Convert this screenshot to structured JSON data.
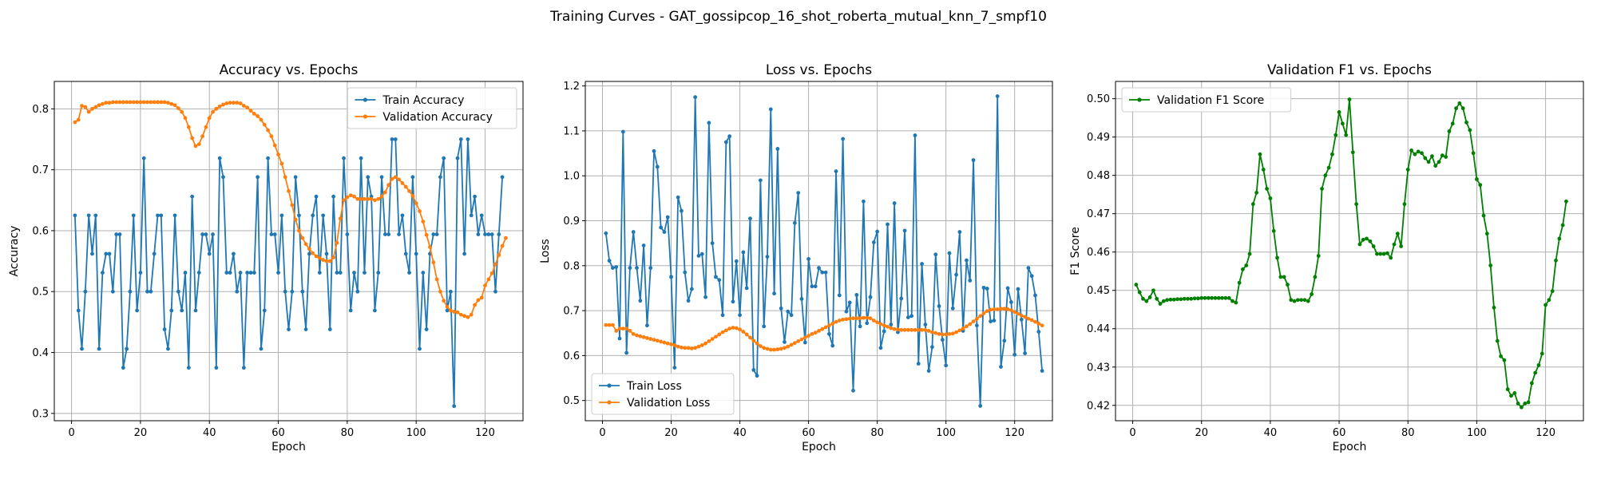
{
  "figure": {
    "suptitle": "Training Curves - GAT_gossipcop_16_shot_roberta_mutual_knn_7_smpf10"
  },
  "colors": {
    "blue": "#1f77b4",
    "orange": "#ff7f0e",
    "green": "#008000"
  },
  "chart_data": [
    {
      "type": "line",
      "title": "Accuracy vs. Epochs",
      "xlabel": "Epoch",
      "ylabel": "Accuracy",
      "xlim": [
        -5,
        131
      ],
      "ylim": [
        0.288,
        0.845
      ],
      "xticks": [
        0,
        20,
        40,
        60,
        80,
        100,
        120
      ],
      "yticks": [
        0.3,
        0.4,
        0.5,
        0.6,
        0.7,
        0.8
      ],
      "legend_position": "top-right",
      "x_start": 1,
      "series": [
        {
          "name": "Train Accuracy",
          "color": "#1f77b4",
          "values": [
            0.625,
            0.469,
            0.406,
            0.5,
            0.625,
            0.562,
            0.625,
            0.406,
            0.531,
            0.562,
            0.562,
            0.5,
            0.594,
            0.594,
            0.375,
            0.406,
            0.5,
            0.625,
            0.469,
            0.531,
            0.719,
            0.5,
            0.5,
            0.562,
            0.625,
            0.625,
            0.438,
            0.406,
            0.469,
            0.625,
            0.5,
            0.469,
            0.531,
            0.375,
            0.656,
            0.469,
            0.531,
            0.594,
            0.594,
            0.562,
            0.594,
            0.375,
            0.719,
            0.688,
            0.531,
            0.531,
            0.562,
            0.5,
            0.531,
            0.375,
            0.531,
            0.531,
            0.531,
            0.688,
            0.406,
            0.469,
            0.719,
            0.594,
            0.594,
            0.531,
            0.625,
            0.5,
            0.438,
            0.5,
            0.688,
            0.625,
            0.5,
            0.438,
            0.562,
            0.625,
            0.656,
            0.531,
            0.625,
            0.562,
            0.438,
            0.656,
            0.531,
            0.531,
            0.719,
            0.594,
            0.469,
            0.531,
            0.5,
            0.719,
            0.531,
            0.688,
            0.656,
            0.469,
            0.531,
            0.688,
            0.594,
            0.594,
            0.75,
            0.75,
            0.594,
            0.625,
            0.562,
            0.531,
            0.688,
            0.562,
            0.406,
            0.531,
            0.438,
            0.562,
            0.594,
            0.594,
            0.688,
            0.719,
            0.469,
            0.5,
            0.312,
            0.719,
            0.75,
            0.562,
            0.75,
            0.625,
            0.656,
            0.594,
            0.625,
            0.594,
            0.594,
            0.594,
            0.5,
            0.594,
            0.688
          ]
        },
        {
          "name": "Validation Accuracy",
          "color": "#ff7f0e",
          "values": [
            0.778,
            0.782,
            0.805,
            0.803,
            0.795,
            0.8,
            0.803,
            0.806,
            0.808,
            0.81,
            0.81,
            0.811,
            0.811,
            0.811,
            0.811,
            0.811,
            0.811,
            0.811,
            0.811,
            0.811,
            0.811,
            0.811,
            0.811,
            0.811,
            0.811,
            0.811,
            0.811,
            0.81,
            0.808,
            0.806,
            0.801,
            0.795,
            0.785,
            0.77,
            0.752,
            0.739,
            0.742,
            0.755,
            0.77,
            0.785,
            0.795,
            0.8,
            0.804,
            0.807,
            0.809,
            0.81,
            0.81,
            0.81,
            0.809,
            0.805,
            0.802,
            0.797,
            0.792,
            0.788,
            0.782,
            0.774,
            0.765,
            0.755,
            0.74,
            0.725,
            0.71,
            0.688,
            0.665,
            0.642,
            0.618,
            0.6,
            0.588,
            0.578,
            0.57,
            0.563,
            0.558,
            0.555,
            0.552,
            0.55,
            0.55,
            0.556,
            0.58,
            0.62,
            0.65,
            0.655,
            0.658,
            0.656,
            0.652,
            0.652,
            0.652,
            0.652,
            0.652,
            0.65,
            0.652,
            0.656,
            0.663,
            0.675,
            0.685,
            0.688,
            0.684,
            0.678,
            0.672,
            0.665,
            0.657,
            0.645,
            0.632,
            0.615,
            0.593,
            0.573,
            0.548,
            0.52,
            0.5,
            0.485,
            0.475,
            0.469,
            0.467,
            0.466,
            0.462,
            0.46,
            0.458,
            0.462,
            0.478,
            0.486,
            0.49,
            0.51,
            0.52,
            0.53,
            0.545,
            0.56,
            0.575,
            0.588
          ]
        }
      ]
    },
    {
      "type": "line",
      "title": "Loss vs. Epochs",
      "xlabel": "Epoch",
      "ylabel": "Loss",
      "xlim": [
        -5,
        131
      ],
      "ylim": [
        0.455,
        1.21
      ],
      "xticks": [
        0,
        20,
        40,
        60,
        80,
        100,
        120
      ],
      "yticks": [
        0.5,
        0.6,
        0.7,
        0.8,
        0.9,
        1.0,
        1.1,
        1.2
      ],
      "legend_position": "bottom-left",
      "x_start": 1,
      "series": [
        {
          "name": "Train Loss",
          "color": "#1f77b4",
          "values": [
            0.872,
            0.811,
            0.795,
            0.797,
            0.638,
            1.098,
            0.606,
            0.795,
            0.875,
            0.795,
            0.722,
            0.845,
            0.667,
            0.795,
            1.055,
            1.02,
            0.885,
            0.875,
            0.908,
            0.775,
            0.573,
            0.952,
            0.922,
            0.785,
            0.722,
            0.748,
            1.175,
            0.822,
            0.826,
            0.73,
            1.118,
            0.85,
            0.775,
            0.768,
            0.69,
            1.075,
            1.088,
            0.72,
            0.81,
            0.69,
            0.83,
            0.75,
            0.905,
            0.568,
            0.555,
            0.99,
            0.665,
            0.82,
            1.148,
            0.738,
            1.06,
            0.705,
            0.63,
            0.698,
            0.69,
            0.895,
            0.962,
            0.726,
            0.629,
            0.815,
            0.754,
            0.754,
            0.795,
            0.785,
            0.785,
            0.648,
            0.622,
            1.01,
            0.734,
            1.082,
            0.698,
            0.718,
            0.522,
            0.735,
            0.665,
            0.943,
            0.672,
            0.73,
            0.852,
            0.876,
            0.617,
            0.654,
            0.892,
            0.669,
            0.939,
            0.652,
            0.727,
            0.878,
            0.685,
            0.688,
            1.09,
            0.582,
            0.804,
            0.669,
            0.566,
            0.619,
            0.825,
            0.71,
            0.635,
            0.578,
            0.828,
            0.705,
            0.78,
            0.875,
            0.655,
            0.812,
            0.767,
            1.035,
            0.667,
            0.488,
            0.751,
            0.749,
            0.676,
            0.678,
            1.177,
            0.575,
            0.633,
            0.75,
            0.719,
            0.602,
            0.748,
            0.68,
            0.605,
            0.795,
            0.777,
            0.734,
            0.653,
            0.566
          ]
        },
        {
          "name": "Validation Loss",
          "color": "#ff7f0e",
          "values": [
            0.668,
            0.668,
            0.668,
            0.655,
            0.66,
            0.66,
            0.66,
            0.655,
            0.648,
            0.645,
            0.643,
            0.641,
            0.639,
            0.637,
            0.635,
            0.633,
            0.631,
            0.629,
            0.627,
            0.625,
            0.623,
            0.62,
            0.618,
            0.617,
            0.617,
            0.616,
            0.617,
            0.62,
            0.623,
            0.627,
            0.632,
            0.637,
            0.642,
            0.647,
            0.652,
            0.656,
            0.66,
            0.662,
            0.661,
            0.658,
            0.653,
            0.647,
            0.64,
            0.633,
            0.627,
            0.621,
            0.617,
            0.615,
            0.613,
            0.613,
            0.614,
            0.615,
            0.617,
            0.62,
            0.624,
            0.628,
            0.632,
            0.636,
            0.64,
            0.644,
            0.648,
            0.651,
            0.655,
            0.659,
            0.663,
            0.667,
            0.671,
            0.675,
            0.678,
            0.68,
            0.681,
            0.682,
            0.683,
            0.683,
            0.683,
            0.684,
            0.684,
            0.683,
            0.678,
            0.674,
            0.67,
            0.667,
            0.664,
            0.661,
            0.659,
            0.658,
            0.657,
            0.657,
            0.657,
            0.657,
            0.657,
            0.657,
            0.657,
            0.657,
            0.655,
            0.652,
            0.65,
            0.648,
            0.647,
            0.647,
            0.648,
            0.649,
            0.652,
            0.656,
            0.66,
            0.665,
            0.67,
            0.676,
            0.682,
            0.688,
            0.694,
            0.699,
            0.702,
            0.703,
            0.703,
            0.704,
            0.704,
            0.703,
            0.701,
            0.697,
            0.693,
            0.689,
            0.686,
            0.682,
            0.679,
            0.675,
            0.671,
            0.667
          ]
        }
      ]
    },
    {
      "type": "line",
      "title": "Validation F1 vs. Epochs",
      "xlabel": "Epoch",
      "ylabel": "F1 Score",
      "xlim": [
        -5,
        131
      ],
      "ylim": [
        0.416,
        0.5045
      ],
      "xticks": [
        0,
        20,
        40,
        60,
        80,
        100,
        120
      ],
      "yticks": [
        0.42,
        0.43,
        0.44,
        0.45,
        0.46,
        0.47,
        0.48,
        0.49,
        0.5
      ],
      "legend_position": "top-left",
      "x_start": 1,
      "series": [
        {
          "name": "Validation F1 Score",
          "color": "#008000",
          "values": [
            0.4515,
            0.4495,
            0.4478,
            0.4472,
            0.4482,
            0.45,
            0.4478,
            0.4465,
            0.4472,
            0.4475,
            0.4476,
            0.4476,
            0.4477,
            0.4477,
            0.4478,
            0.4478,
            0.4478,
            0.4479,
            0.4479,
            0.448,
            0.448,
            0.448,
            0.448,
            0.448,
            0.448,
            0.448,
            0.448,
            0.448,
            0.4472,
            0.4468,
            0.452,
            0.4555,
            0.4565,
            0.4595,
            0.4725,
            0.4755,
            0.4855,
            0.4815,
            0.4765,
            0.474,
            0.4655,
            0.4585,
            0.4535,
            0.4535,
            0.4515,
            0.4475,
            0.4472,
            0.4475,
            0.4475,
            0.4475,
            0.4472,
            0.449,
            0.4535,
            0.459,
            0.4765,
            0.48,
            0.482,
            0.4855,
            0.4905,
            0.4965,
            0.4935,
            0.4905,
            0.4998,
            0.486,
            0.4725,
            0.462,
            0.4632,
            0.4635,
            0.4628,
            0.4615,
            0.4595,
            0.4595,
            0.4595,
            0.4597,
            0.4585,
            0.462,
            0.4648,
            0.4615,
            0.4725,
            0.4815,
            0.4865,
            0.4855,
            0.4862,
            0.4858,
            0.4845,
            0.4835,
            0.485,
            0.4825,
            0.4835,
            0.4852,
            0.4848,
            0.4915,
            0.4935,
            0.4975,
            0.4988,
            0.4975,
            0.4938,
            0.4918,
            0.4858,
            0.479,
            0.4775,
            0.4695,
            0.4648,
            0.4565,
            0.4455,
            0.4368,
            0.4328,
            0.4318,
            0.4242,
            0.4225,
            0.4232,
            0.4205,
            0.4195,
            0.4205,
            0.4208,
            0.4258,
            0.4285,
            0.4305,
            0.4335,
            0.4462,
            0.4475,
            0.4498,
            0.4578,
            0.4635,
            0.467,
            0.4732
          ]
        }
      ]
    }
  ]
}
